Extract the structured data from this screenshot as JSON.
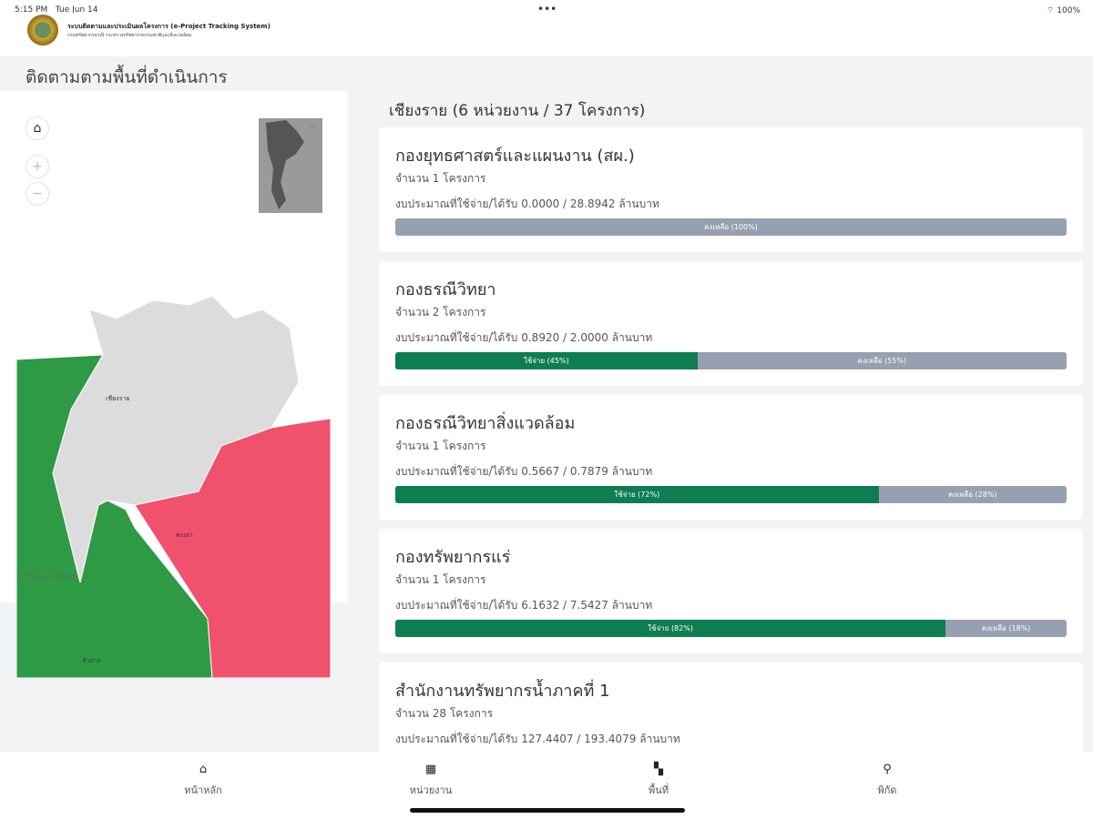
{
  "status": {
    "time": "5:15 PM",
    "date": "Tue Jun 14",
    "battery": "100%"
  },
  "header": {
    "title": "ระบบติดตามและประเมินผลโครงการ (e-Project Tracking System)",
    "subtitle": "กรมทรัพยากรธรณี กระทรวงทรัพยากรธรรมชาติและสิ่งแวดล้อม"
  },
  "page_title": "ติดตามตามพื้นที่ดำเนินการ",
  "map": {
    "labels": [
      "เชียงราย",
      "พะเยา",
      "ลำปาง"
    ],
    "attribution": "JS map by amCharts",
    "colors": {
      "green": "#2e9a45",
      "red": "#f0526e",
      "grey": "#dcdcdc"
    }
  },
  "region_heading": "เชียงราย (6 หน่วยงาน / 37 โครงการ)",
  "agencies": [
    {
      "name": "กองยุทธศาสตร์และแผนงาน (สผ.)",
      "count": "จำนวน 1 โครงการ",
      "budget": "งบประมาณที่ใช้จ่าย/ได้รับ 0.0000 / 28.8942 ล้านบาท",
      "used_pct": 0,
      "used_label": "",
      "remain_label": "คงเหลือ (100%)"
    },
    {
      "name": "กองธรณีวิทยา",
      "count": "จำนวน 2 โครงการ",
      "budget": "งบประมาณที่ใช้จ่าย/ได้รับ 0.8920 / 2.0000 ล้านบาท",
      "used_pct": 45,
      "used_label": "ใช้จ่าย (45%)",
      "remain_label": "คงเหลือ (55%)"
    },
    {
      "name": "กองธรณีวิทยาสิ่งแวดล้อม",
      "count": "จำนวน 1 โครงการ",
      "budget": "งบประมาณที่ใช้จ่าย/ได้รับ 0.5667 / 0.7879 ล้านบาท",
      "used_pct": 72,
      "used_label": "ใช้จ่าย (72%)",
      "remain_label": "คงเหลือ (28%)"
    },
    {
      "name": "กองทรัพยากรแร่",
      "count": "จำนวน 1 โครงการ",
      "budget": "งบประมาณที่ใช้จ่าย/ได้รับ 6.1632 / 7.5427 ล้านบาท",
      "used_pct": 82,
      "used_label": "ใช้จ่าย (82%)",
      "remain_label": "คงเหลือ (18%)"
    },
    {
      "name": "สำนักงานทรัพยากรน้ำภาคที่ 1",
      "count": "จำนวน 28 โครงการ",
      "budget": "งบประมาณที่ใช้จ่าย/ได้รับ 127.4407 / 193.4079 ล้านบาท"
    }
  ],
  "tabs": [
    {
      "label": "หน้าหลัก",
      "icon": "home-icon"
    },
    {
      "label": "หน่วยงาน",
      "icon": "building-icon"
    },
    {
      "label": "พื้นที่",
      "icon": "map-icon"
    },
    {
      "label": "พิกัด",
      "icon": "pin-icon"
    }
  ]
}
